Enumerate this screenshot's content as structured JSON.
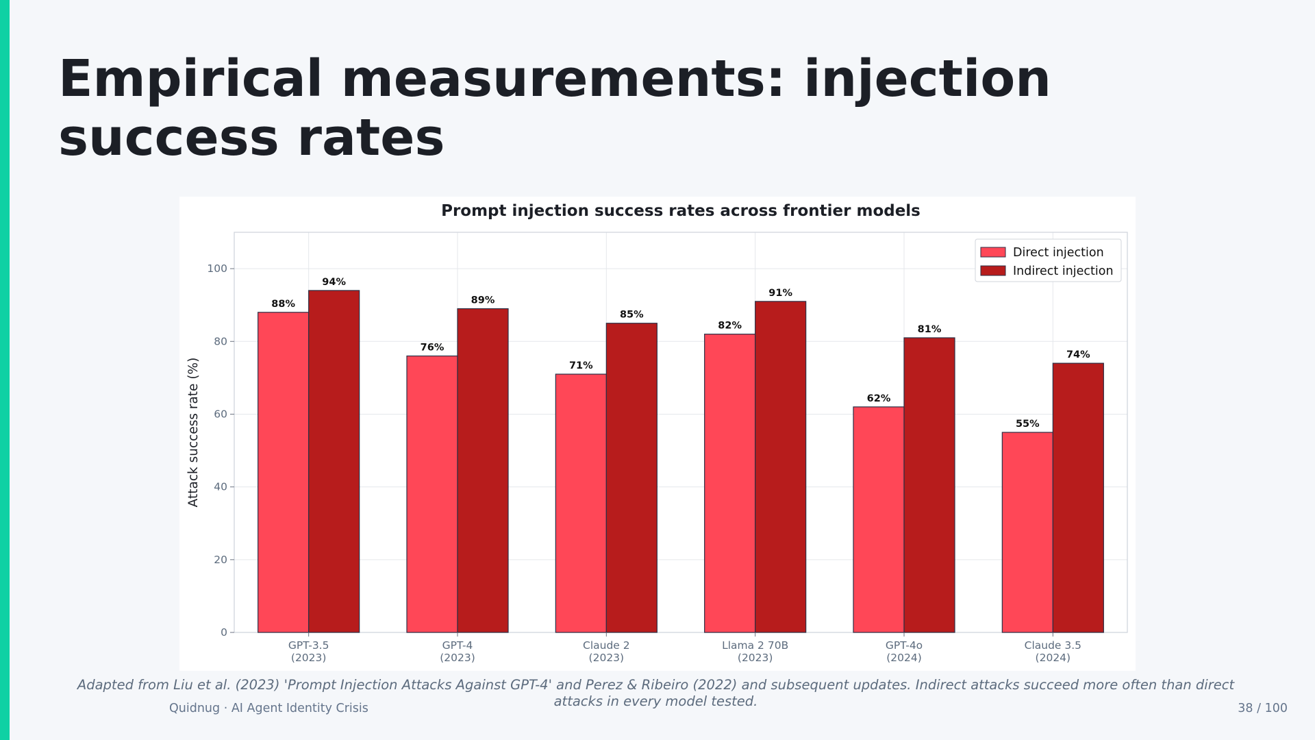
{
  "slide": {
    "title": "Empirical measurements: injection success rates",
    "caption": "Adapted from Liu et al. (2023) 'Prompt Injection Attacks Against GPT-4' and Perez & Ribeiro (2022) and subsequent updates. Indirect attacks succeed more often than direct attacks in every model tested.",
    "footer_left": "Quidnug  ·  AI Agent Identity Crisis",
    "page_number": "38 / 100"
  },
  "colors": {
    "accent_bar": "#0fd1a4",
    "direct": "#ff4757",
    "indirect": "#b71c1c"
  },
  "chart_data": {
    "type": "bar",
    "title": "Prompt injection success rates across frontier models",
    "xlabel": "",
    "ylabel": "Attack success rate (%)",
    "ylim": [
      0,
      110
    ],
    "yticks": [
      0,
      20,
      40,
      60,
      80,
      100
    ],
    "grid": true,
    "legend_position": "top-right",
    "categories": [
      {
        "name": "GPT-3.5",
        "year": "(2023)"
      },
      {
        "name": "GPT-4",
        "year": "(2023)"
      },
      {
        "name": "Claude 2",
        "year": "(2023)"
      },
      {
        "name": "Llama 2 70B",
        "year": "(2023)"
      },
      {
        "name": "GPT-4o",
        "year": "(2024)"
      },
      {
        "name": "Claude 3.5",
        "year": "(2024)"
      }
    ],
    "series": [
      {
        "name": "Direct injection",
        "color": "#ff4757",
        "values": [
          88,
          76,
          71,
          82,
          62,
          55
        ],
        "labels": [
          "88%",
          "76%",
          "71%",
          "82%",
          "62%",
          "55%"
        ]
      },
      {
        "name": "Indirect injection",
        "color": "#b71c1c",
        "values": [
          94,
          89,
          85,
          91,
          81,
          74
        ],
        "labels": [
          "94%",
          "89%",
          "85%",
          "91%",
          "81%",
          "74%"
        ]
      }
    ]
  }
}
